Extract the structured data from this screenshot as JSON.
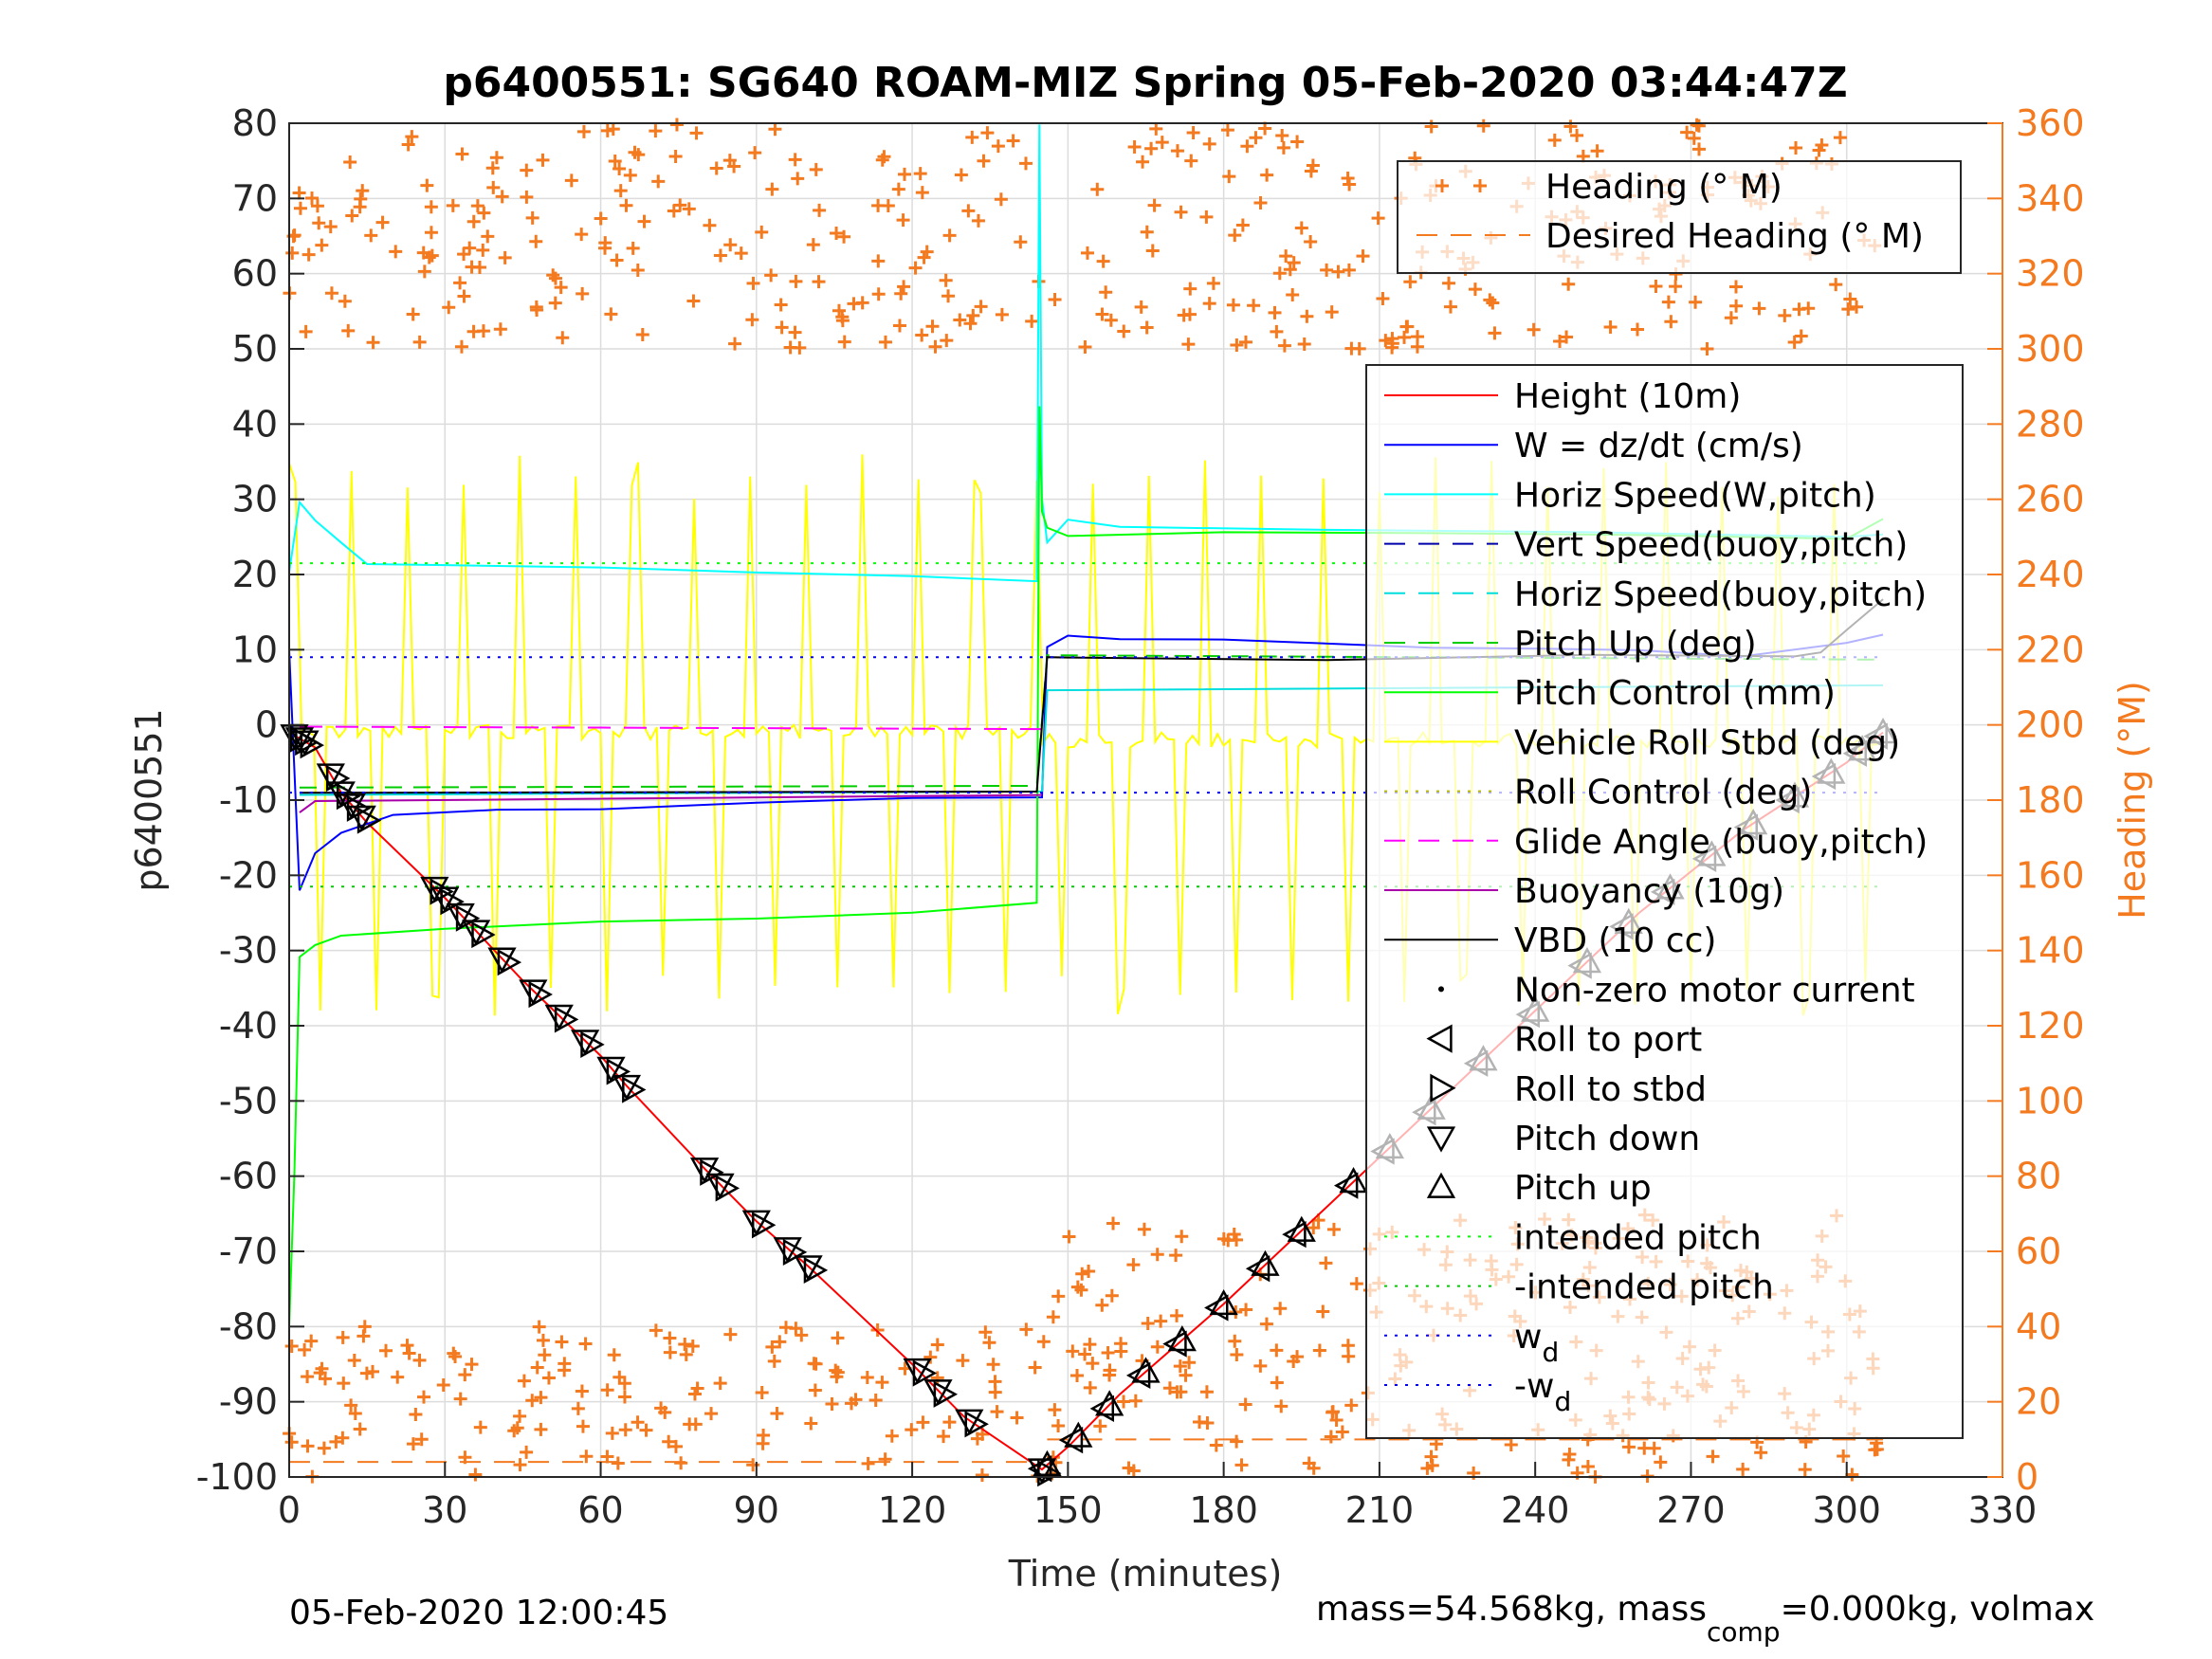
{
  "chart_data": {
    "type": "line",
    "title": "p6400551: SG640 ROAM-MIZ Spring 05-Feb-2020 03:44:47Z",
    "xlabel": "Time (minutes)",
    "ylabel_left": "p6400551",
    "ylabel_right": "Heading (°M)",
    "xlim": [
      0,
      330
    ],
    "ylim_left": [
      -100,
      80
    ],
    "ylim_right": [
      0,
      360
    ],
    "x_ticks": [
      0,
      30,
      60,
      90,
      120,
      150,
      180,
      210,
      240,
      270,
      300,
      330
    ],
    "y_ticks_left": [
      -100,
      -90,
      -80,
      -70,
      -60,
      -50,
      -40,
      -30,
      -20,
      -10,
      0,
      10,
      20,
      30,
      40,
      50,
      60,
      70,
      80
    ],
    "y_ticks_right": [
      0,
      20,
      40,
      60,
      80,
      100,
      120,
      140,
      160,
      180,
      200,
      220,
      240,
      260,
      280,
      300,
      320,
      340,
      360
    ],
    "grid": true,
    "footer_left": "05-Feb-2020 12:00:45",
    "footer_right": {
      "pre": "mass=54.568kg, mass",
      "sub": "comp",
      "post": "=0.000kg, volmax"
    },
    "legend_heading": {
      "placement": "top-right",
      "entries": [
        "Heading (° M)",
        "Desired Heading (° M)"
      ]
    },
    "legend_main": {
      "placement": "right",
      "entries": [
        {
          "label": "Height (10m)",
          "color": "#ff0000",
          "style": "solid"
        },
        {
          "label": "W = dz/dt (cm/s)",
          "color": "#0000ff",
          "style": "solid"
        },
        {
          "label": "Horiz Speed(W,pitch)",
          "color": "#00ffff",
          "style": "solid"
        },
        {
          "label": "Vert Speed(buoy,pitch)",
          "color": "#0000aa",
          "style": "dash"
        },
        {
          "label": "Horiz Speed(buoy,pitch)",
          "color": "#00dddd",
          "style": "dash"
        },
        {
          "label": "Pitch Up (deg)",
          "color": "#00cc00",
          "style": "dash"
        },
        {
          "label": "Pitch Control (mm)",
          "color": "#00ff00",
          "style": "solid"
        },
        {
          "label": "Vehicle Roll Stbd (deg)",
          "color": "#ffff00",
          "style": "solid"
        },
        {
          "label": "Roll Control (deg)",
          "color": "#bbbb00",
          "style": "dot"
        },
        {
          "label": "Glide Angle (buoy,pitch)",
          "color": "#ff00ff",
          "style": "dash"
        },
        {
          "label": "Buoyancy (10g)",
          "color": "#aa00aa",
          "style": "solid"
        },
        {
          "label": "VBD (10 cc)",
          "color": "#000000",
          "style": "solid"
        },
        {
          "label": "Non-zero motor current",
          "color": "#000000",
          "style": "point"
        },
        {
          "label": "Roll to port",
          "color": "#000000",
          "style": "tri-left"
        },
        {
          "label": "Roll to stbd",
          "color": "#000000",
          "style": "tri-right"
        },
        {
          "label": "Pitch down",
          "color": "#000000",
          "style": "tri-down"
        },
        {
          "label": "Pitch up",
          "color": "#000000",
          "style": "tri-up"
        },
        {
          "label": "intended pitch",
          "color": "#00ff00",
          "style": "dot"
        },
        {
          "label": "-intended pitch",
          "color": "#00cc00",
          "style": "dot"
        },
        {
          "label": "w",
          "sub": "d",
          "color": "#0000ff",
          "style": "dot"
        },
        {
          "label": "-w",
          "sub": "d",
          "color": "#0000ff",
          "style": "dot"
        }
      ]
    },
    "series": [
      {
        "name": "Height (10m)",
        "color": "#ff0000",
        "x": [
          0,
          5,
          10,
          15,
          30,
          45,
          60,
          65,
          80,
          90,
          100,
          120,
          130,
          145,
          150,
          160,
          180,
          200,
          220,
          240,
          260,
          280,
          300,
          307
        ],
        "y": [
          -1,
          -3,
          -9,
          -13,
          -23,
          -34,
          -44,
          -48,
          -59,
          -66,
          -72,
          -85,
          -92,
          -99,
          -96,
          -89,
          -77,
          -64,
          -51,
          -38,
          -25,
          -14,
          -5,
          -1
        ]
      },
      {
        "name": "W = dz/dt (cm/s)",
        "color": "#0000ff",
        "x": [
          0,
          2,
          5,
          10,
          20,
          40,
          60,
          90,
          120,
          145,
          146,
          150,
          160,
          180,
          200,
          220,
          240,
          260,
          280,
          300,
          307
        ],
        "y": [
          10,
          -22,
          -17,
          -14,
          -12,
          -11.5,
          -11,
          -10.5,
          -10,
          -9.5,
          10,
          12,
          11.5,
          11,
          10.5,
          10,
          10,
          10,
          9.5,
          11,
          12
        ]
      },
      {
        "name": "Horiz Speed(W,pitch)",
        "color": "#00ffff",
        "x": [
          0,
          2,
          5,
          10,
          15,
          30,
          60,
          90,
          120,
          144,
          144.5,
          145,
          146,
          150,
          160,
          200,
          250,
          300,
          307
        ],
        "y": [
          20,
          30,
          27,
          24,
          21,
          21.5,
          21,
          20.5,
          20,
          19,
          80,
          30,
          24,
          27,
          26.5,
          26,
          25.5,
          25,
          25
        ]
      },
      {
        "name": "Horiz Speed(buoy,pitch)",
        "color": "#00dddd",
        "x": [
          2,
          145,
          146,
          307
        ],
        "y": [
          -9,
          -9,
          5,
          5
        ]
      },
      {
        "name": "Pitch Control (mm)",
        "color": "#00ff00",
        "x": [
          0,
          1,
          2,
          5,
          10,
          30,
          60,
          90,
          120,
          144,
          144.5,
          145,
          146,
          150,
          180,
          220,
          260,
          300,
          307
        ],
        "y": [
          -80,
          -60,
          -31,
          -29,
          -28,
          -27,
          -26.5,
          -26,
          -25,
          -24,
          42,
          28,
          26,
          25.5,
          26,
          25.5,
          25,
          24.5,
          27
        ]
      },
      {
        "name": "Pitch Up (deg)",
        "color": "#00cc00",
        "x": [
          2,
          144,
          146,
          307
        ],
        "y": [
          -8,
          -8,
          9,
          9
        ]
      },
      {
        "name": "Glide Angle (buoy,pitch)",
        "color": "#ff00ff",
        "x": [
          2,
          145
        ],
        "y": [
          -0.5,
          -0.5
        ]
      },
      {
        "name": "Buoyancy (10g)",
        "color": "#aa00aa",
        "x": [
          2,
          5,
          145
        ],
        "y": [
          -12,
          -10,
          -9
        ]
      },
      {
        "name": "VBD (10 cc)",
        "color": "#000000",
        "x": [
          2,
          144,
          146,
          150,
          200,
          250,
          290,
          295,
          300,
          307
        ],
        "y": [
          -9,
          -9,
          9,
          9,
          9,
          9,
          9,
          10,
          13,
          17
        ]
      },
      {
        "name": "intended pitch",
        "color": "#00ff00",
        "x": [
          0,
          307
        ],
        "y": [
          21.5,
          21.5
        ]
      },
      {
        "name": "-intended pitch",
        "color": "#00cc00",
        "x": [
          0,
          307
        ],
        "y": [
          -21.5,
          -21.5
        ]
      },
      {
        "name": "w_d",
        "color": "#0000ff",
        "x": [
          0,
          307
        ],
        "y": [
          9,
          9
        ]
      },
      {
        "name": "-w_d",
        "color": "#0000ff",
        "x": [
          0,
          307
        ],
        "y": [
          -9,
          -9
        ]
      }
    ],
    "markers": {
      "pitch_down_x": [
        1,
        2,
        3,
        8,
        10,
        12,
        14,
        28,
        30,
        33,
        36,
        41,
        47,
        52,
        57,
        62,
        65,
        80,
        83,
        90,
        96,
        100,
        121,
        125,
        131,
        145
      ],
      "pitch_up_x": [
        146,
        152,
        158,
        165,
        172,
        180,
        188,
        195,
        205,
        212,
        220,
        230,
        240,
        250,
        258,
        266,
        274,
        282,
        290,
        297,
        303,
        307
      ]
    },
    "heading_band_top": [
      300,
      360
    ],
    "heading_band_bottom": [
      0,
      60
    ]
  }
}
